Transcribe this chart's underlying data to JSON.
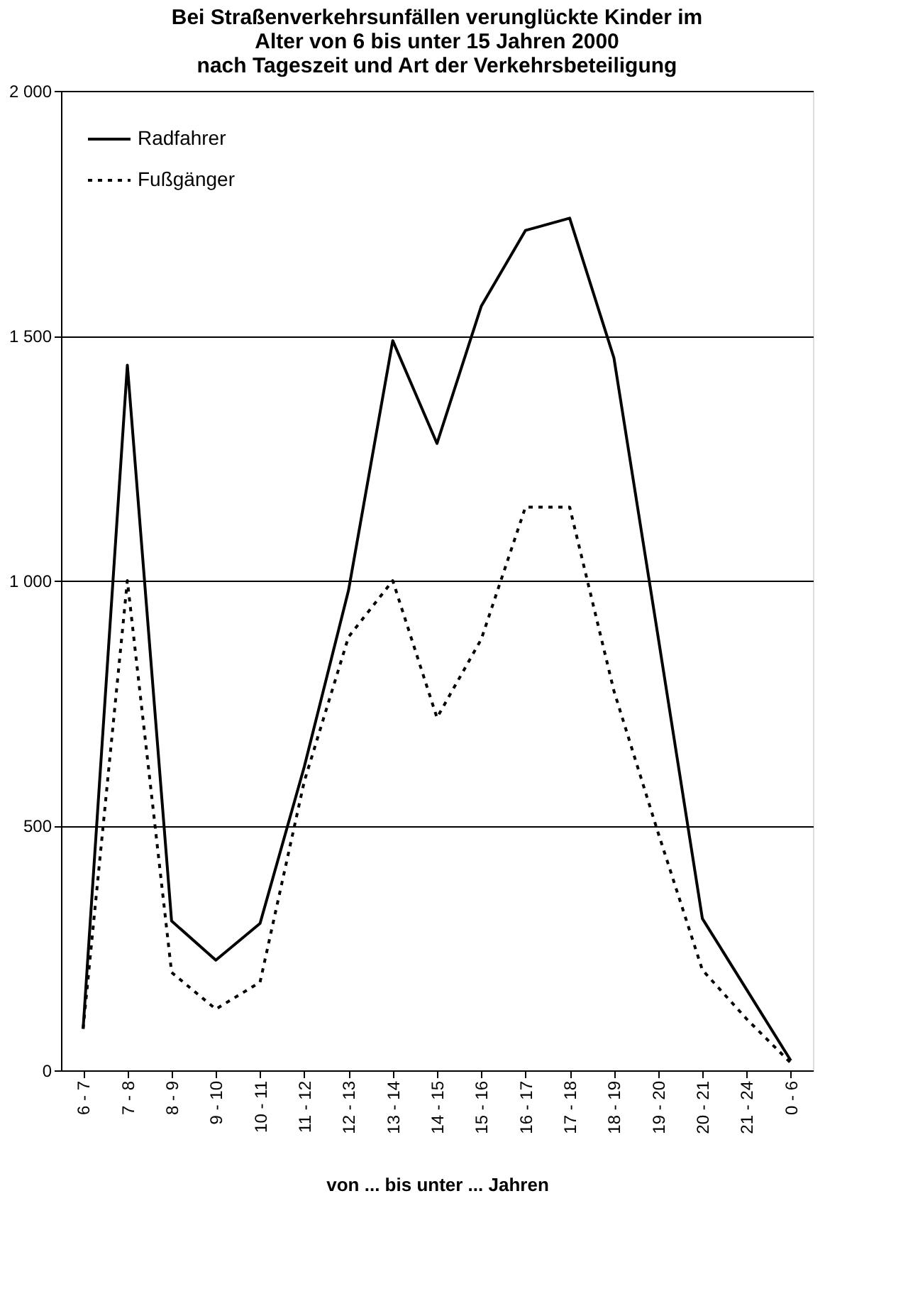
{
  "chart_data": {
    "type": "line",
    "title": [
      "Bei Straßenverkehrsunfällen verunglückte Kinder im",
      "Alter von 6 bis unter 15 Jahren 2000",
      "nach Tageszeit und Art der Verkehrsbeteiligung"
    ],
    "xlabel": "von ... bis unter ... Jahren",
    "categories": [
      "6 - 7",
      "7 - 8",
      "8 - 9",
      "9 - 10",
      "10 - 11",
      "11 - 12",
      "12 - 13",
      "13 - 14",
      "14 - 15",
      "15 - 16",
      "16 - 17",
      "17 - 18",
      "18 - 19",
      "19 - 20",
      "20 - 21",
      "21 - 24",
      "0 - 6"
    ],
    "series": [
      {
        "name": "Radfahrer",
        "color": "#000000",
        "line_style": "solid",
        "values": [
          85,
          1440,
          305,
          225,
          300,
          620,
          980,
          1490,
          1280,
          1560,
          1715,
          1740,
          1455,
          885,
          310,
          165,
          20
        ]
      },
      {
        "name": "Fußgänger",
        "color": "#000000",
        "line_style": "dotted",
        "values": [
          85,
          1000,
          200,
          125,
          180,
          590,
          885,
          1000,
          720,
          880,
          1150,
          1150,
          775,
          485,
          205,
          105,
          15
        ]
      }
    ],
    "ylim": [
      0,
      2000
    ],
    "yticks": [
      0,
      500,
      {
        "value": 1000,
        "label": "1 000"
      },
      {
        "value": 1500,
        "label": "1 500"
      },
      {
        "value": 2000,
        "label": "2 000"
      }
    ],
    "grid": "y",
    "legend": "top left",
    "marker": "none"
  }
}
